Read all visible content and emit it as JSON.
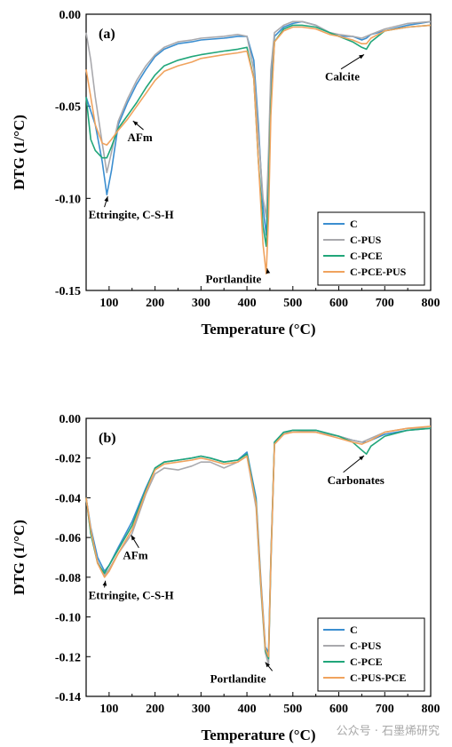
{
  "watermark": "公众号 · 石墨烯研究",
  "chart_data": [
    {
      "type": "line",
      "panel_label": "(a)",
      "xlabel": "Temperature (°C)",
      "ylabel": "DTG (1/°C)",
      "xlim": [
        50,
        800
      ],
      "ylim": [
        -0.15,
        0.0
      ],
      "x_ticks": [
        100,
        200,
        300,
        400,
        500,
        600,
        700,
        800
      ],
      "y_ticks": [
        0.0,
        -0.05,
        -0.1,
        -0.15
      ],
      "y_tick_labels": [
        "0.00",
        "-0.05",
        "-0.10",
        "-0.15"
      ],
      "legend_position": "bottom-right",
      "annotations": [
        {
          "text": "Ettringite, C-S-H",
          "x": 97,
          "y": -0.097,
          "tx": 55,
          "ty": -0.111
        },
        {
          "text": "AFm",
          "x": 152,
          "y": -0.056,
          "tx": 140,
          "ty": -0.069
        },
        {
          "text": "Portlandite",
          "x": 444,
          "y": -0.14,
          "tx": 310,
          "ty": -0.146
        },
        {
          "text": "Calcite",
          "x": 655,
          "y": -0.02,
          "tx": 570,
          "ty": -0.036
        }
      ],
      "series": [
        {
          "name": "C",
          "color": "#3b8ed0",
          "x": [
            50,
            70,
            85,
            95,
            105,
            120,
            140,
            160,
            180,
            200,
            220,
            250,
            280,
            300,
            350,
            380,
            400,
            415,
            425,
            435,
            442,
            447,
            452,
            460,
            480,
            500,
            520,
            550,
            580,
            600,
            630,
            650,
            660,
            670,
            700,
            750,
            800
          ],
          "y": [
            -0.045,
            -0.06,
            -0.08,
            -0.098,
            -0.085,
            -0.06,
            -0.048,
            -0.038,
            -0.03,
            -0.023,
            -0.019,
            -0.016,
            -0.015,
            -0.014,
            -0.013,
            -0.012,
            -0.012,
            -0.025,
            -0.06,
            -0.105,
            -0.12,
            -0.085,
            -0.04,
            -0.012,
            -0.007,
            -0.005,
            -0.004,
            -0.006,
            -0.01,
            -0.012,
            -0.012,
            -0.014,
            -0.013,
            -0.011,
            -0.009,
            -0.006,
            -0.004
          ]
        },
        {
          "name": "C-PUS",
          "color": "#a9a9ad",
          "x": [
            50,
            60,
            70,
            85,
            95,
            105,
            120,
            140,
            160,
            180,
            200,
            220,
            250,
            280,
            300,
            350,
            380,
            400,
            415,
            425,
            435,
            442,
            447,
            452,
            460,
            480,
            500,
            520,
            550,
            580,
            600,
            630,
            650,
            660,
            670,
            700,
            750,
            800
          ],
          "y": [
            -0.01,
            -0.025,
            -0.045,
            -0.07,
            -0.086,
            -0.075,
            -0.058,
            -0.046,
            -0.036,
            -0.028,
            -0.022,
            -0.018,
            -0.015,
            -0.014,
            -0.013,
            -0.012,
            -0.011,
            -0.012,
            -0.03,
            -0.065,
            -0.1,
            -0.11,
            -0.075,
            -0.03,
            -0.01,
            -0.006,
            -0.004,
            -0.004,
            -0.006,
            -0.01,
            -0.011,
            -0.012,
            -0.013,
            -0.012,
            -0.011,
            -0.008,
            -0.005,
            -0.004
          ]
        },
        {
          "name": "C-PCE",
          "color": "#21a67a",
          "x": [
            50,
            60,
            70,
            85,
            95,
            105,
            120,
            140,
            160,
            180,
            200,
            220,
            250,
            280,
            300,
            350,
            380,
            400,
            415,
            425,
            435,
            442,
            447,
            452,
            460,
            480,
            500,
            520,
            550,
            580,
            600,
            630,
            650,
            660,
            670,
            700,
            750,
            800
          ],
          "y": [
            -0.045,
            -0.068,
            -0.074,
            -0.078,
            -0.078,
            -0.072,
            -0.062,
            -0.055,
            -0.048,
            -0.04,
            -0.033,
            -0.028,
            -0.025,
            -0.023,
            -0.022,
            -0.02,
            -0.019,
            -0.018,
            -0.035,
            -0.08,
            -0.115,
            -0.126,
            -0.095,
            -0.05,
            -0.015,
            -0.008,
            -0.006,
            -0.006,
            -0.007,
            -0.01,
            -0.012,
            -0.015,
            -0.018,
            -0.019,
            -0.015,
            -0.009,
            -0.007,
            -0.006
          ]
        },
        {
          "name": "C-PCE-PUS",
          "color": "#f0a35e",
          "x": [
            50,
            60,
            70,
            85,
            95,
            105,
            120,
            140,
            160,
            180,
            200,
            220,
            250,
            280,
            300,
            350,
            380,
            400,
            415,
            425,
            435,
            442,
            447,
            452,
            460,
            480,
            500,
            520,
            550,
            580,
            600,
            630,
            650,
            660,
            670,
            700,
            750,
            800
          ],
          "y": [
            -0.03,
            -0.045,
            -0.06,
            -0.07,
            -0.071,
            -0.068,
            -0.063,
            -0.057,
            -0.05,
            -0.043,
            -0.036,
            -0.031,
            -0.028,
            -0.026,
            -0.024,
            -0.022,
            -0.021,
            -0.02,
            -0.035,
            -0.08,
            -0.125,
            -0.141,
            -0.11,
            -0.055,
            -0.015,
            -0.009,
            -0.007,
            -0.007,
            -0.008,
            -0.011,
            -0.012,
            -0.014,
            -0.016,
            -0.016,
            -0.013,
            -0.009,
            -0.007,
            -0.006
          ]
        }
      ]
    },
    {
      "type": "line",
      "panel_label": "(b)",
      "xlabel": "Temperature (°C)",
      "ylabel": "DTG (1/°C)",
      "xlim": [
        50,
        800
      ],
      "ylim": [
        -0.14,
        0.0
      ],
      "x_ticks": [
        100,
        200,
        300,
        400,
        500,
        600,
        700,
        800
      ],
      "y_ticks": [
        0.0,
        -0.02,
        -0.04,
        -0.06,
        -0.08,
        -0.1,
        -0.12,
        -0.14
      ],
      "y_tick_labels": [
        "0.00",
        "-0.02",
        "-0.04",
        "-0.06",
        "-0.08",
        "-0.10",
        "-0.12",
        "-0.14"
      ],
      "legend_position": "bottom-right",
      "annotations": [
        {
          "text": "Ettringite, C-S-H",
          "x": 92,
          "y": -0.08,
          "tx": 55,
          "ty": -0.091
        },
        {
          "text": "AFm",
          "x": 148,
          "y": -0.057,
          "tx": 130,
          "ty": -0.071
        },
        {
          "text": "Portlandite",
          "x": 440,
          "y": -0.121,
          "tx": 320,
          "ty": -0.133
        },
        {
          "text": "Carbonates",
          "x": 655,
          "y": -0.017,
          "tx": 575,
          "ty": -0.033
        }
      ],
      "series": [
        {
          "name": "C",
          "color": "#3b8ed0",
          "x": [
            50,
            60,
            75,
            90,
            100,
            120,
            150,
            180,
            200,
            220,
            250,
            280,
            300,
            320,
            350,
            380,
            400,
            420,
            430,
            440,
            447,
            452,
            460,
            480,
            500,
            550,
            600,
            630,
            650,
            660,
            670,
            700,
            750,
            800
          ],
          "y": [
            -0.04,
            -0.055,
            -0.07,
            -0.077,
            -0.074,
            -0.065,
            -0.052,
            -0.035,
            -0.025,
            -0.022,
            -0.021,
            -0.02,
            -0.019,
            -0.02,
            -0.022,
            -0.021,
            -0.017,
            -0.04,
            -0.08,
            -0.115,
            -0.118,
            -0.07,
            -0.012,
            -0.007,
            -0.006,
            -0.006,
            -0.009,
            -0.011,
            -0.012,
            -0.012,
            -0.011,
            -0.008,
            -0.006,
            -0.005
          ]
        },
        {
          "name": "C-PUS",
          "color": "#a9a9ad",
          "x": [
            50,
            60,
            75,
            90,
            100,
            120,
            150,
            180,
            200,
            220,
            250,
            280,
            300,
            320,
            350,
            380,
            400,
            420,
            430,
            440,
            447,
            452,
            460,
            480,
            500,
            550,
            600,
            630,
            650,
            660,
            670,
            700,
            750,
            800
          ],
          "y": [
            -0.04,
            -0.058,
            -0.072,
            -0.079,
            -0.076,
            -0.068,
            -0.058,
            -0.038,
            -0.028,
            -0.025,
            -0.026,
            -0.024,
            -0.022,
            -0.022,
            -0.025,
            -0.022,
            -0.019,
            -0.045,
            -0.085,
            -0.118,
            -0.124,
            -0.075,
            -0.013,
            -0.008,
            -0.006,
            -0.007,
            -0.009,
            -0.011,
            -0.012,
            -0.011,
            -0.01,
            -0.007,
            -0.005,
            -0.005
          ]
        },
        {
          "name": "C-PCE",
          "color": "#21a67a",
          "x": [
            50,
            60,
            75,
            90,
            100,
            120,
            150,
            180,
            200,
            220,
            250,
            280,
            300,
            320,
            350,
            380,
            400,
            420,
            430,
            440,
            447,
            452,
            460,
            480,
            500,
            550,
            600,
            630,
            650,
            660,
            670,
            700,
            750,
            800
          ],
          "y": [
            -0.04,
            -0.058,
            -0.073,
            -0.078,
            -0.074,
            -0.066,
            -0.054,
            -0.036,
            -0.025,
            -0.022,
            -0.021,
            -0.02,
            -0.019,
            -0.02,
            -0.022,
            -0.021,
            -0.018,
            -0.042,
            -0.083,
            -0.117,
            -0.121,
            -0.072,
            -0.012,
            -0.007,
            -0.006,
            -0.006,
            -0.009,
            -0.012,
            -0.016,
            -0.018,
            -0.014,
            -0.009,
            -0.006,
            -0.005
          ]
        },
        {
          "name": "C-PUS-PCE",
          "color": "#f0a35e",
          "x": [
            50,
            60,
            75,
            90,
            100,
            120,
            150,
            180,
            200,
            220,
            250,
            280,
            300,
            320,
            350,
            380,
            400,
            420,
            430,
            440,
            447,
            452,
            460,
            480,
            500,
            550,
            600,
            630,
            650,
            660,
            670,
            700,
            750,
            800
          ],
          "y": [
            -0.04,
            -0.056,
            -0.073,
            -0.08,
            -0.077,
            -0.068,
            -0.056,
            -0.037,
            -0.026,
            -0.023,
            -0.022,
            -0.021,
            -0.02,
            -0.021,
            -0.023,
            -0.022,
            -0.019,
            -0.043,
            -0.082,
            -0.116,
            -0.12,
            -0.072,
            -0.013,
            -0.008,
            -0.007,
            -0.007,
            -0.01,
            -0.012,
            -0.013,
            -0.012,
            -0.011,
            -0.007,
            -0.005,
            -0.004
          ]
        }
      ]
    }
  ]
}
